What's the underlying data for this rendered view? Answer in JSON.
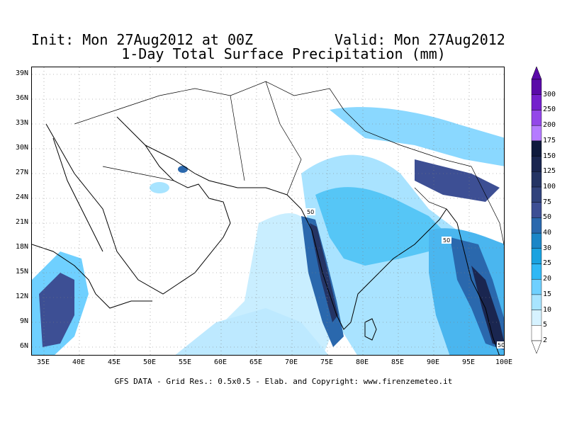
{
  "header": {
    "init": "Init: Mon 27Aug2012 at 00Z",
    "valid": "Valid: Mon 27Aug2012",
    "subtitle": "1-Day Total Surface Precipitation (mm)"
  },
  "footer": "GFS DATA - Grid Res.: 0.5x0.5 - Elab. and Copyright: www.firenzemeteo.it",
  "axes": {
    "lat_labels": [
      "39N",
      "36N",
      "33N",
      "30N",
      "27N",
      "24N",
      "21N",
      "18N",
      "15N",
      "12N",
      "9N",
      "6N"
    ],
    "lon_labels": [
      "35E",
      "40E",
      "45E",
      "50E",
      "55E",
      "60E",
      "65E",
      "70E",
      "75E",
      "80E",
      "85E",
      "90E",
      "95E",
      "100E"
    ]
  },
  "legend": {
    "levels": [
      "2",
      "5",
      "10",
      "15",
      "20",
      "25",
      "30",
      "40",
      "50",
      "75",
      "100",
      "125",
      "150",
      "175",
      "200",
      "250",
      "300"
    ],
    "colors": [
      "#ffffff",
      "#d6f2ff",
      "#a8e4ff",
      "#6fd0ff",
      "#30b8f5",
      "#1aa2e0",
      "#1b86c7",
      "#2a68ad",
      "#3d4f94",
      "#31437c",
      "#243464",
      "#1a2650",
      "#0f1a3d",
      "#b57bff",
      "#9347e8",
      "#7420cc",
      "#5a0aa8"
    ]
  },
  "map_labels": [
    "50",
    "50",
    "50"
  ],
  "colors": {
    "ocean_land": "#ffffff",
    "coast": "#000000",
    "grid": "#7f7f7f"
  }
}
